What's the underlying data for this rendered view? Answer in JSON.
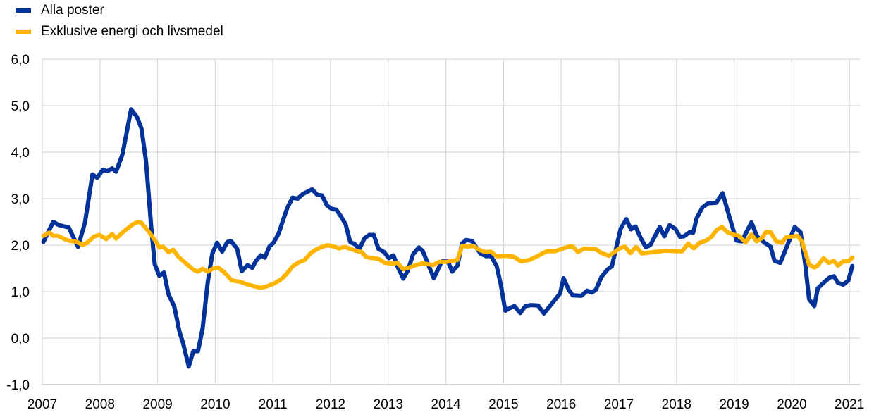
{
  "chart_data": {
    "type": "line",
    "title": "",
    "xlabel": "",
    "ylabel": "",
    "xlim": [
      2007,
      2021.2
    ],
    "ylim": [
      -1,
      6
    ],
    "grid": true,
    "legend_position": "top-left",
    "x_ticks": [
      "2007",
      "2008",
      "2009",
      "2010",
      "2011",
      "2012",
      "2013",
      "2014",
      "2015",
      "2016",
      "2017",
      "2018",
      "2019",
      "2020",
      "2021"
    ],
    "y_ticks": [
      "-1,0",
      "0,0",
      "1,0",
      "2,0",
      "3,0",
      "4,0",
      "5,0",
      "6,0"
    ],
    "series": [
      {
        "name": "Alla poster",
        "color": "#003299",
        "points": [
          [
            2007.02,
            2.07
          ],
          [
            2007.19,
            2.5
          ],
          [
            2007.29,
            2.43
          ],
          [
            2007.46,
            2.38
          ],
          [
            2007.62,
            1.96
          ],
          [
            2007.74,
            2.48
          ],
          [
            2007.87,
            3.52
          ],
          [
            2007.95,
            3.45
          ],
          [
            2008.05,
            3.62
          ],
          [
            2008.13,
            3.59
          ],
          [
            2008.21,
            3.65
          ],
          [
            2008.28,
            3.58
          ],
          [
            2008.39,
            3.95
          ],
          [
            2008.54,
            4.92
          ],
          [
            2008.64,
            4.76
          ],
          [
            2008.72,
            4.51
          ],
          [
            2008.8,
            3.8
          ],
          [
            2008.89,
            2.38
          ],
          [
            2008.95,
            1.59
          ],
          [
            2009.03,
            1.34
          ],
          [
            2009.11,
            1.41
          ],
          [
            2009.19,
            0.94
          ],
          [
            2009.29,
            0.68
          ],
          [
            2009.38,
            0.13
          ],
          [
            2009.44,
            -0.1
          ],
          [
            2009.54,
            -0.61
          ],
          [
            2009.62,
            -0.28
          ],
          [
            2009.7,
            -0.28
          ],
          [
            2009.78,
            0.2
          ],
          [
            2009.87,
            1.21
          ],
          [
            2009.95,
            1.82
          ],
          [
            2010.03,
            2.05
          ],
          [
            2010.12,
            1.86
          ],
          [
            2010.21,
            2.07
          ],
          [
            2010.28,
            2.08
          ],
          [
            2010.38,
            1.92
          ],
          [
            2010.46,
            1.44
          ],
          [
            2010.56,
            1.57
          ],
          [
            2010.64,
            1.51
          ],
          [
            2010.7,
            1.65
          ],
          [
            2010.79,
            1.78
          ],
          [
            2010.86,
            1.73
          ],
          [
            2010.94,
            1.97
          ],
          [
            2011.01,
            2.05
          ],
          [
            2011.1,
            2.25
          ],
          [
            2011.18,
            2.55
          ],
          [
            2011.25,
            2.8
          ],
          [
            2011.34,
            3.02
          ],
          [
            2011.43,
            3.0
          ],
          [
            2011.52,
            3.1
          ],
          [
            2011.68,
            3.2
          ],
          [
            2011.77,
            3.08
          ],
          [
            2011.85,
            3.07
          ],
          [
            2011.94,
            2.85
          ],
          [
            2012.02,
            2.78
          ],
          [
            2012.1,
            2.76
          ],
          [
            2012.18,
            2.62
          ],
          [
            2012.26,
            2.45
          ],
          [
            2012.34,
            2.07
          ],
          [
            2012.42,
            2.02
          ],
          [
            2012.5,
            1.92
          ],
          [
            2012.59,
            2.15
          ],
          [
            2012.67,
            2.22
          ],
          [
            2012.75,
            2.22
          ],
          [
            2012.83,
            1.92
          ],
          [
            2012.93,
            1.85
          ],
          [
            2013.01,
            1.72
          ],
          [
            2013.09,
            1.78
          ],
          [
            2013.17,
            1.52
          ],
          [
            2013.26,
            1.28
          ],
          [
            2013.34,
            1.45
          ],
          [
            2013.43,
            1.8
          ],
          [
            2013.53,
            1.95
          ],
          [
            2013.6,
            1.87
          ],
          [
            2013.79,
            1.29
          ],
          [
            2013.93,
            1.65
          ],
          [
            2014.03,
            1.66
          ],
          [
            2014.11,
            1.43
          ],
          [
            2014.2,
            1.56
          ],
          [
            2014.28,
            2.03
          ],
          [
            2014.35,
            2.11
          ],
          [
            2014.45,
            2.09
          ],
          [
            2014.6,
            1.82
          ],
          [
            2014.7,
            1.76
          ],
          [
            2014.78,
            1.77
          ],
          [
            2014.88,
            1.55
          ],
          [
            2014.95,
            1.17
          ],
          [
            2015.03,
            0.59
          ],
          [
            2015.1,
            0.64
          ],
          [
            2015.19,
            0.69
          ],
          [
            2015.29,
            0.54
          ],
          [
            2015.38,
            0.69
          ],
          [
            2015.48,
            0.71
          ],
          [
            2015.6,
            0.7
          ],
          [
            2015.7,
            0.53
          ],
          [
            2015.98,
            0.96
          ],
          [
            2016.04,
            1.29
          ],
          [
            2016.13,
            1.04
          ],
          [
            2016.2,
            0.92
          ],
          [
            2016.35,
            0.91
          ],
          [
            2016.45,
            1.02
          ],
          [
            2016.53,
            0.98
          ],
          [
            2016.6,
            1.04
          ],
          [
            2016.7,
            1.32
          ],
          [
            2016.8,
            1.47
          ],
          [
            2016.88,
            1.55
          ],
          [
            2017.03,
            2.35
          ],
          [
            2017.13,
            2.56
          ],
          [
            2017.21,
            2.34
          ],
          [
            2017.29,
            2.4
          ],
          [
            2017.38,
            2.15
          ],
          [
            2017.47,
            1.95
          ],
          [
            2017.55,
            2.01
          ],
          [
            2017.63,
            2.2
          ],
          [
            2017.71,
            2.39
          ],
          [
            2017.79,
            2.19
          ],
          [
            2017.88,
            2.43
          ],
          [
            2017.98,
            2.35
          ],
          [
            2018.06,
            2.18
          ],
          [
            2018.13,
            2.19
          ],
          [
            2018.23,
            2.28
          ],
          [
            2018.29,
            2.27
          ],
          [
            2018.35,
            2.58
          ],
          [
            2018.45,
            2.81
          ],
          [
            2018.55,
            2.9
          ],
          [
            2018.69,
            2.91
          ],
          [
            2018.8,
            3.12
          ],
          [
            2018.9,
            2.68
          ],
          [
            2019.04,
            2.1
          ],
          [
            2019.13,
            2.08
          ],
          [
            2019.3,
            2.49
          ],
          [
            2019.4,
            2.18
          ],
          [
            2019.53,
            2.05
          ],
          [
            2019.63,
            1.97
          ],
          [
            2019.7,
            1.66
          ],
          [
            2019.8,
            1.62
          ],
          [
            2020.05,
            2.39
          ],
          [
            2020.15,
            2.28
          ],
          [
            2020.23,
            1.62
          ],
          [
            2020.3,
            0.84
          ],
          [
            2020.39,
            0.69
          ],
          [
            2020.45,
            1.07
          ],
          [
            2020.55,
            1.19
          ],
          [
            2020.65,
            1.3
          ],
          [
            2020.73,
            1.33
          ],
          [
            2020.8,
            1.19
          ],
          [
            2020.89,
            1.15
          ],
          [
            2020.98,
            1.24
          ],
          [
            2021.05,
            1.55
          ]
        ]
      },
      {
        "name": "Exklusive energi och livsmedel",
        "color": "#FFB400",
        "points": [
          [
            2007.02,
            2.2
          ],
          [
            2007.12,
            2.27
          ],
          [
            2007.19,
            2.2
          ],
          [
            2007.27,
            2.2
          ],
          [
            2007.44,
            2.1
          ],
          [
            2007.6,
            2.07
          ],
          [
            2007.7,
            2.0
          ],
          [
            2007.8,
            2.07
          ],
          [
            2007.89,
            2.18
          ],
          [
            2007.99,
            2.22
          ],
          [
            2008.11,
            2.13
          ],
          [
            2008.21,
            2.24
          ],
          [
            2008.28,
            2.14
          ],
          [
            2008.4,
            2.28
          ],
          [
            2008.56,
            2.44
          ],
          [
            2008.66,
            2.5
          ],
          [
            2008.71,
            2.49
          ],
          [
            2008.82,
            2.33
          ],
          [
            2008.93,
            2.15
          ],
          [
            2009.03,
            1.95
          ],
          [
            2009.09,
            1.97
          ],
          [
            2009.19,
            1.85
          ],
          [
            2009.27,
            1.9
          ],
          [
            2009.36,
            1.75
          ],
          [
            2009.48,
            1.62
          ],
          [
            2009.62,
            1.47
          ],
          [
            2009.7,
            1.43
          ],
          [
            2009.78,
            1.49
          ],
          [
            2009.87,
            1.43
          ],
          [
            2009.95,
            1.49
          ],
          [
            2010.05,
            1.52
          ],
          [
            2010.15,
            1.42
          ],
          [
            2010.29,
            1.24
          ],
          [
            2010.44,
            1.21
          ],
          [
            2010.54,
            1.16
          ],
          [
            2010.66,
            1.12
          ],
          [
            2010.79,
            1.08
          ],
          [
            2010.91,
            1.12
          ],
          [
            2011.03,
            1.18
          ],
          [
            2011.16,
            1.28
          ],
          [
            2011.25,
            1.4
          ],
          [
            2011.35,
            1.55
          ],
          [
            2011.45,
            1.63
          ],
          [
            2011.55,
            1.68
          ],
          [
            2011.65,
            1.82
          ],
          [
            2011.74,
            1.9
          ],
          [
            2011.85,
            1.96
          ],
          [
            2011.95,
            2.0
          ],
          [
            2012.05,
            1.97
          ],
          [
            2012.15,
            1.93
          ],
          [
            2012.25,
            1.96
          ],
          [
            2012.34,
            1.92
          ],
          [
            2012.44,
            1.88
          ],
          [
            2012.54,
            1.85
          ],
          [
            2012.62,
            1.74
          ],
          [
            2012.75,
            1.72
          ],
          [
            2012.84,
            1.7
          ],
          [
            2012.94,
            1.62
          ],
          [
            2013.06,
            1.6
          ],
          [
            2013.16,
            1.62
          ],
          [
            2013.26,
            1.48
          ],
          [
            2013.36,
            1.52
          ],
          [
            2013.48,
            1.57
          ],
          [
            2013.6,
            1.61
          ],
          [
            2013.78,
            1.57
          ],
          [
            2013.88,
            1.64
          ],
          [
            2014.0,
            1.64
          ],
          [
            2014.2,
            1.68
          ],
          [
            2014.28,
            1.98
          ],
          [
            2014.38,
            1.97
          ],
          [
            2014.48,
            1.98
          ],
          [
            2014.58,
            1.9
          ],
          [
            2014.68,
            1.85
          ],
          [
            2014.78,
            1.86
          ],
          [
            2014.88,
            1.76
          ],
          [
            2015.05,
            1.77
          ],
          [
            2015.18,
            1.75
          ],
          [
            2015.3,
            1.65
          ],
          [
            2015.45,
            1.68
          ],
          [
            2015.6,
            1.77
          ],
          [
            2015.75,
            1.87
          ],
          [
            2015.9,
            1.87
          ],
          [
            2016.13,
            1.97
          ],
          [
            2016.2,
            1.97
          ],
          [
            2016.29,
            1.85
          ],
          [
            2016.4,
            1.93
          ],
          [
            2016.6,
            1.91
          ],
          [
            2016.7,
            1.83
          ],
          [
            2016.83,
            1.77
          ],
          [
            2017.0,
            1.92
          ],
          [
            2017.1,
            1.97
          ],
          [
            2017.2,
            1.83
          ],
          [
            2017.3,
            1.96
          ],
          [
            2017.4,
            1.82
          ],
          [
            2017.6,
            1.85
          ],
          [
            2017.8,
            1.88
          ],
          [
            2018.0,
            1.87
          ],
          [
            2018.1,
            1.87
          ],
          [
            2018.2,
            2.03
          ],
          [
            2018.3,
            1.93
          ],
          [
            2018.4,
            2.05
          ],
          [
            2018.5,
            2.09
          ],
          [
            2018.6,
            2.17
          ],
          [
            2018.7,
            2.33
          ],
          [
            2018.79,
            2.39
          ],
          [
            2018.88,
            2.28
          ],
          [
            2018.98,
            2.23
          ],
          [
            2019.08,
            2.2
          ],
          [
            2019.2,
            2.06
          ],
          [
            2019.3,
            2.23
          ],
          [
            2019.39,
            2.08
          ],
          [
            2019.48,
            2.15
          ],
          [
            2019.55,
            2.28
          ],
          [
            2019.63,
            2.28
          ],
          [
            2019.73,
            2.08
          ],
          [
            2019.83,
            2.05
          ],
          [
            2019.9,
            2.17
          ],
          [
            2020.1,
            2.2
          ],
          [
            2020.18,
            2.07
          ],
          [
            2020.3,
            1.58
          ],
          [
            2020.39,
            1.52
          ],
          [
            2020.45,
            1.56
          ],
          [
            2020.55,
            1.72
          ],
          [
            2020.64,
            1.62
          ],
          [
            2020.73,
            1.66
          ],
          [
            2020.8,
            1.56
          ],
          [
            2020.89,
            1.65
          ],
          [
            2020.98,
            1.65
          ],
          [
            2021.05,
            1.73
          ]
        ]
      }
    ]
  }
}
